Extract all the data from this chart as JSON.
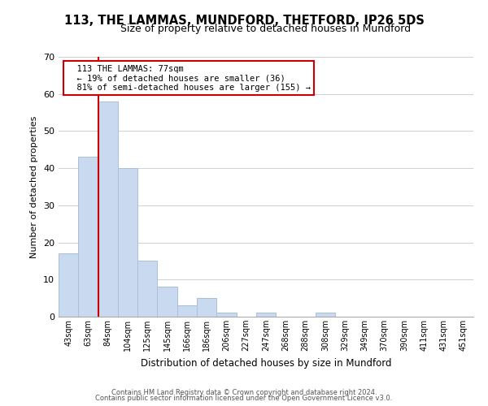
{
  "title": "113, THE LAMMAS, MUNDFORD, THETFORD, IP26 5DS",
  "subtitle": "Size of property relative to detached houses in Mundford",
  "xlabel": "Distribution of detached houses by size in Mundford",
  "ylabel": "Number of detached properties",
  "bar_labels": [
    "43sqm",
    "63sqm",
    "84sqm",
    "104sqm",
    "125sqm",
    "145sqm",
    "166sqm",
    "186sqm",
    "206sqm",
    "227sqm",
    "247sqm",
    "268sqm",
    "288sqm",
    "308sqm",
    "329sqm",
    "349sqm",
    "370sqm",
    "390sqm",
    "411sqm",
    "431sqm",
    "451sqm"
  ],
  "bar_values": [
    17,
    43,
    58,
    40,
    15,
    8,
    3,
    5,
    1,
    0,
    1,
    0,
    0,
    1,
    0,
    0,
    0,
    0,
    0,
    0,
    0
  ],
  "bar_color": "#c8d9f0",
  "bar_edge_color": "#aabfd8",
  "ylim": [
    0,
    70
  ],
  "yticks": [
    0,
    10,
    20,
    30,
    40,
    50,
    60,
    70
  ],
  "property_line_x": 1.5,
  "property_line_color": "#cc0000",
  "annotation_title": "113 THE LAMMAS: 77sqm",
  "annotation_line1": "← 19% of detached houses are smaller (36)",
  "annotation_line2": "81% of semi-detached houses are larger (155) →",
  "annotation_box_color": "#ffffff",
  "annotation_box_edge": "#cc0000",
  "footer1": "Contains HM Land Registry data © Crown copyright and database right 2024.",
  "footer2": "Contains public sector information licensed under the Open Government Licence v3.0.",
  "background_color": "#ffffff",
  "grid_color": "#d0d0d0"
}
